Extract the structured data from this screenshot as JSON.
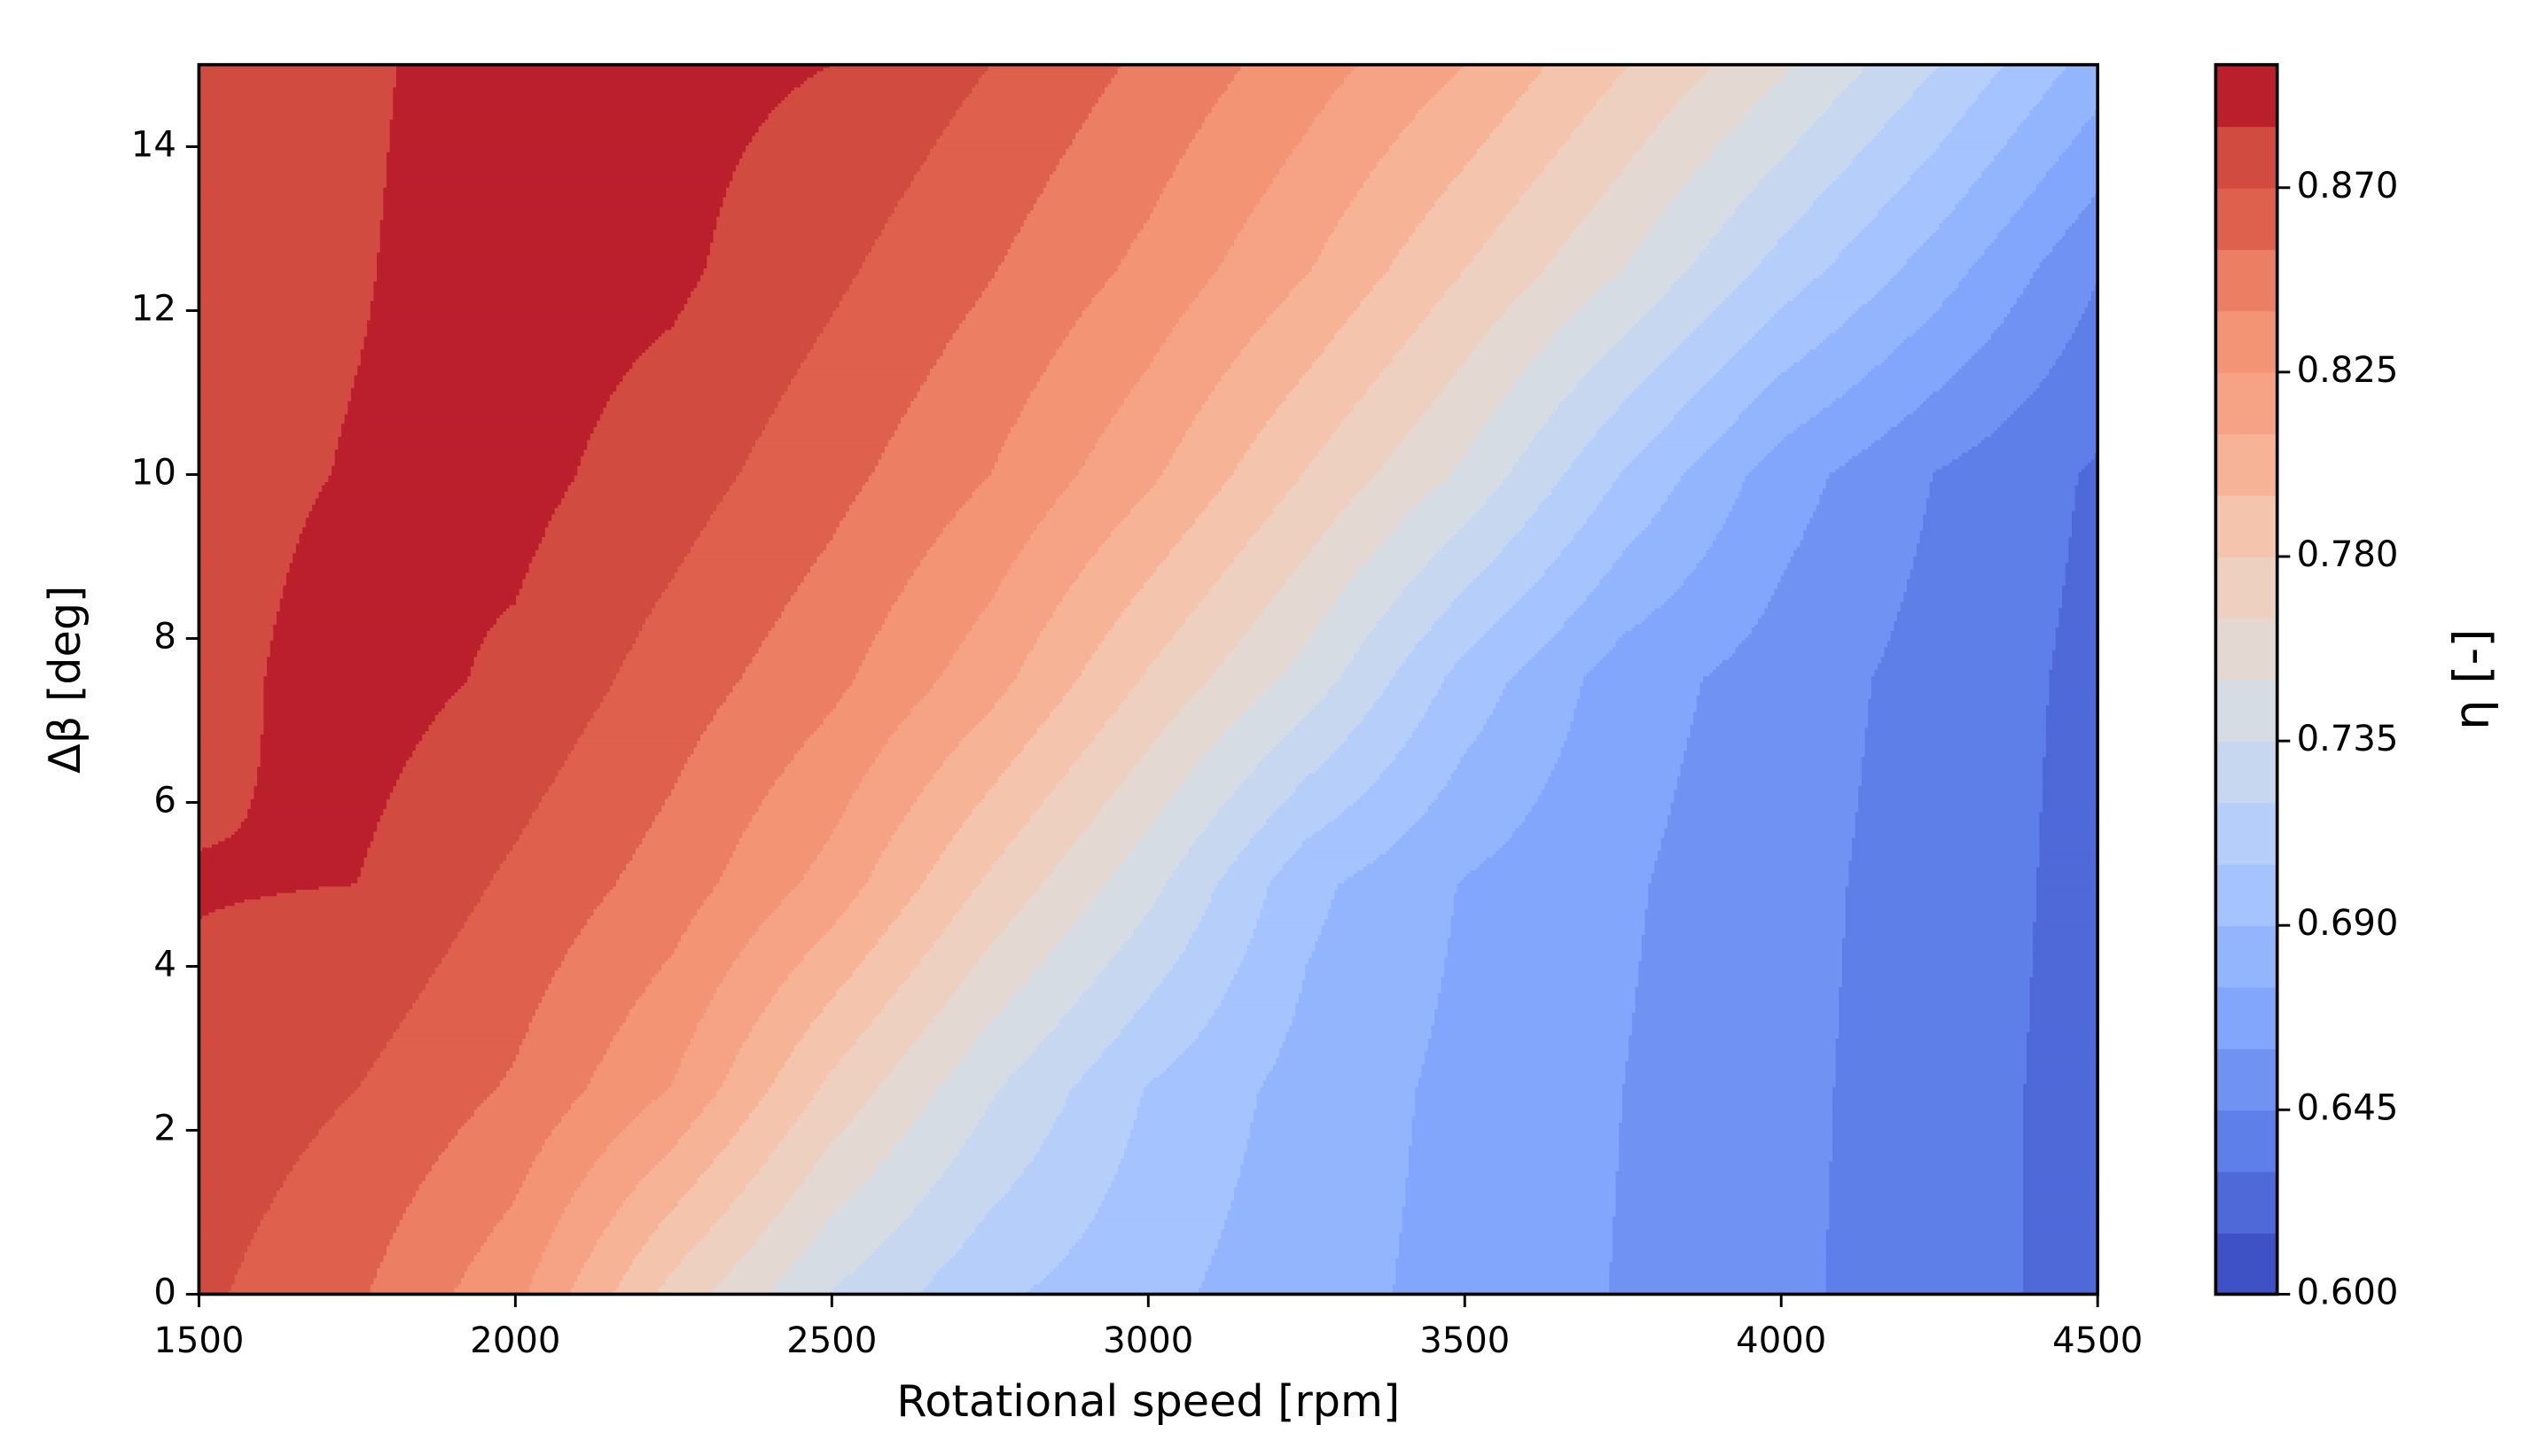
{
  "chart_data": {
    "type": "contourf",
    "xlabel": "Rotational speed [rpm]",
    "ylabel": "Δβ [deg]",
    "colorbar_label": "η [-]",
    "xlim": [
      1500,
      4500
    ],
    "ylim": [
      0,
      15
    ],
    "xticks": [
      1500,
      2000,
      2500,
      3000,
      3500,
      4000,
      4500
    ],
    "yticks": [
      0,
      2,
      4,
      6,
      8,
      10,
      12,
      14
    ],
    "x": [
      1500,
      1750,
      2000,
      2250,
      2500,
      2750,
      3000,
      3250,
      3500,
      3750,
      4000,
      4250,
      4500
    ],
    "y": [
      0,
      2.5,
      5,
      7.5,
      10,
      12.5,
      15
    ],
    "z": [
      [
        0.873,
        0.857,
        0.829,
        0.774,
        0.734,
        0.708,
        0.694,
        0.681,
        0.67,
        0.659,
        0.648,
        0.637,
        0.624
      ],
      [
        0.88,
        0.87,
        0.853,
        0.824,
        0.776,
        0.737,
        0.704,
        0.684,
        0.671,
        0.66,
        0.649,
        0.637,
        0.624
      ],
      [
        0.886,
        0.885,
        0.867,
        0.848,
        0.819,
        0.777,
        0.74,
        0.694,
        0.674,
        0.662,
        0.65,
        0.638,
        0.625
      ],
      [
        0.88,
        0.892,
        0.882,
        0.863,
        0.844,
        0.816,
        0.778,
        0.744,
        0.699,
        0.667,
        0.653,
        0.639,
        0.626
      ],
      [
        0.88,
        0.886,
        0.89,
        0.877,
        0.86,
        0.84,
        0.813,
        0.779,
        0.747,
        0.704,
        0.667,
        0.644,
        0.628
      ],
      [
        0.879,
        0.884,
        0.892,
        0.888,
        0.873,
        0.856,
        0.836,
        0.811,
        0.78,
        0.75,
        0.714,
        0.682,
        0.646
      ],
      [
        0.877,
        0.883,
        0.891,
        0.89,
        0.885,
        0.87,
        0.852,
        0.832,
        0.81,
        0.781,
        0.753,
        0.72,
        0.683
      ]
    ],
    "levels": [
      0.6,
      0.615,
      0.63,
      0.645,
      0.66,
      0.675,
      0.69,
      0.705,
      0.72,
      0.735,
      0.75,
      0.765,
      0.78,
      0.795,
      0.81,
      0.825,
      0.84,
      0.855,
      0.87,
      0.885,
      0.9
    ],
    "colors": [
      "#3e51c5",
      "#4f69d9",
      "#5f7fe8",
      "#7093f3",
      "#82a6fb",
      "#93b5fe",
      "#a5c3fe",
      "#b6cefa",
      "#c7d7f0",
      "#d6dce4",
      "#e4d9d2",
      "#eed0c0",
      "#f4c4ac",
      "#f7b396",
      "#f6a385",
      "#f39475",
      "#ec7f63",
      "#de614d",
      "#d24b40",
      "#bb1f2c"
    ],
    "cticks": [
      {
        "value": 0.6,
        "label": "0.600"
      },
      0.645,
      {
        "value": 0.69,
        "label": "0.690"
      },
      0.735,
      {
        "value": 0.78,
        "label": "0.780"
      },
      0.825,
      {
        "value": 0.87,
        "label": "0.870"
      }
    ]
  }
}
